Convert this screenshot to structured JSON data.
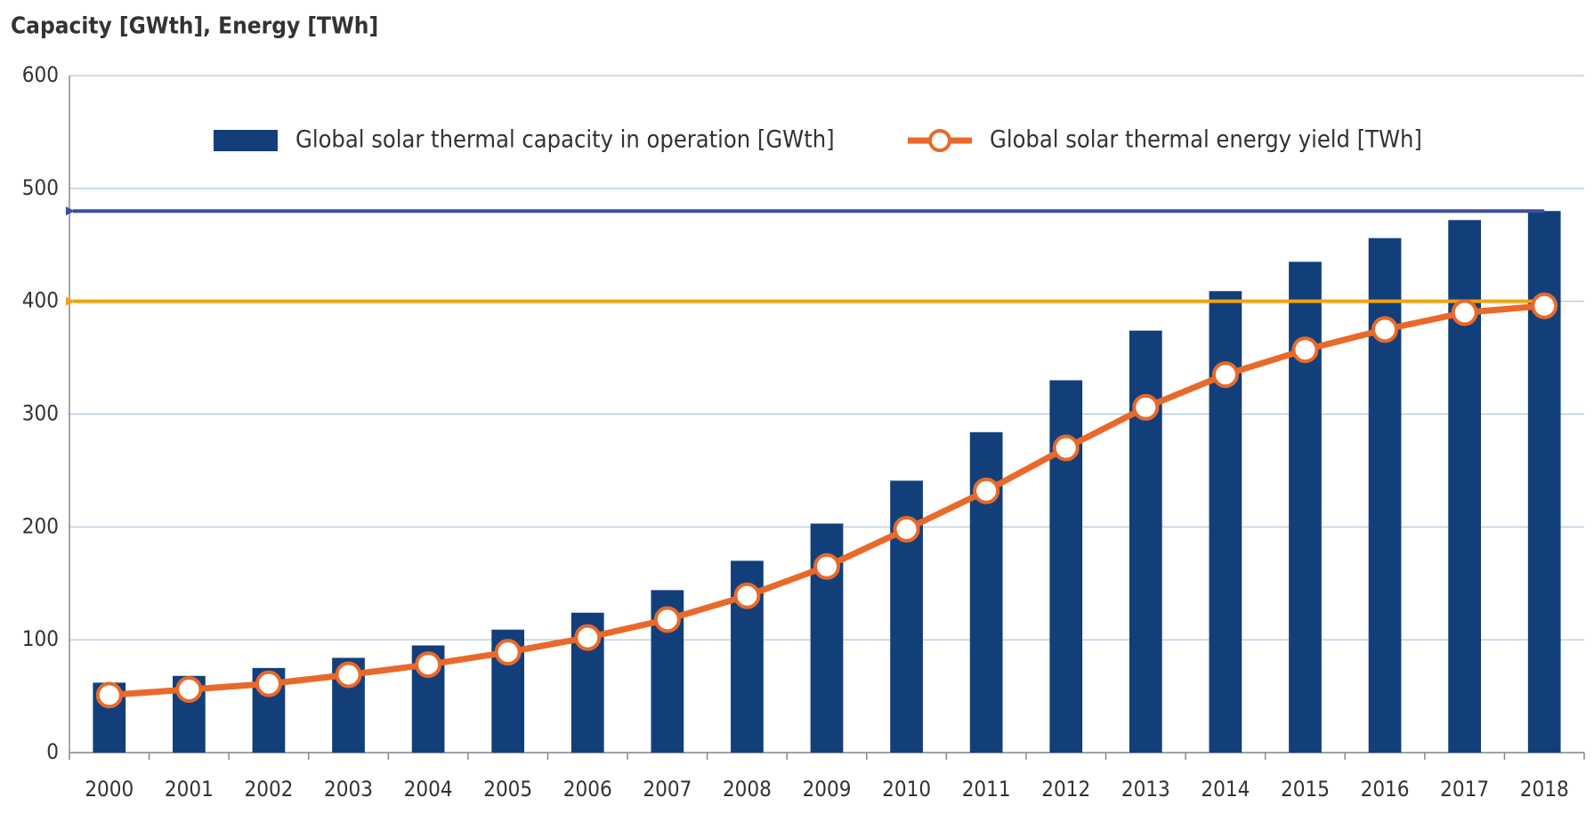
{
  "chart_data": {
    "type": "bar_line",
    "title": "Capacity [GWth], Energy [TWh]",
    "categories": [
      "2000",
      "2001",
      "2002",
      "2003",
      "2004",
      "2005",
      "2006",
      "2007",
      "2008",
      "2009",
      "2010",
      "2011",
      "2012",
      "2013",
      "2014",
      "2015",
      "2016",
      "2017",
      "2018"
    ],
    "series": [
      {
        "name": "Global solar thermal capacity in operation [GWth]",
        "type": "bar",
        "color": "#123f7a",
        "values": [
          62,
          68,
          75,
          84,
          95,
          109,
          124,
          144,
          170,
          203,
          241,
          284,
          330,
          374,
          409,
          435,
          456,
          472,
          480
        ]
      },
      {
        "name": "Global solar thermal energy yield [TWh]",
        "type": "line",
        "color": "#e8692a",
        "values": [
          51,
          56,
          61,
          69,
          78,
          89,
          102,
          118,
          139,
          165,
          198,
          232,
          270,
          306,
          335,
          357,
          375,
          390,
          396
        ]
      }
    ],
    "reference_lines": [
      {
        "value": 480,
        "color": "#3a4fa0"
      },
      {
        "value": 400,
        "color": "#f5a00f"
      }
    ],
    "ylim": [
      0,
      600
    ],
    "yticks": [
      0,
      100,
      200,
      300,
      400,
      500,
      600
    ],
    "grid": true
  }
}
